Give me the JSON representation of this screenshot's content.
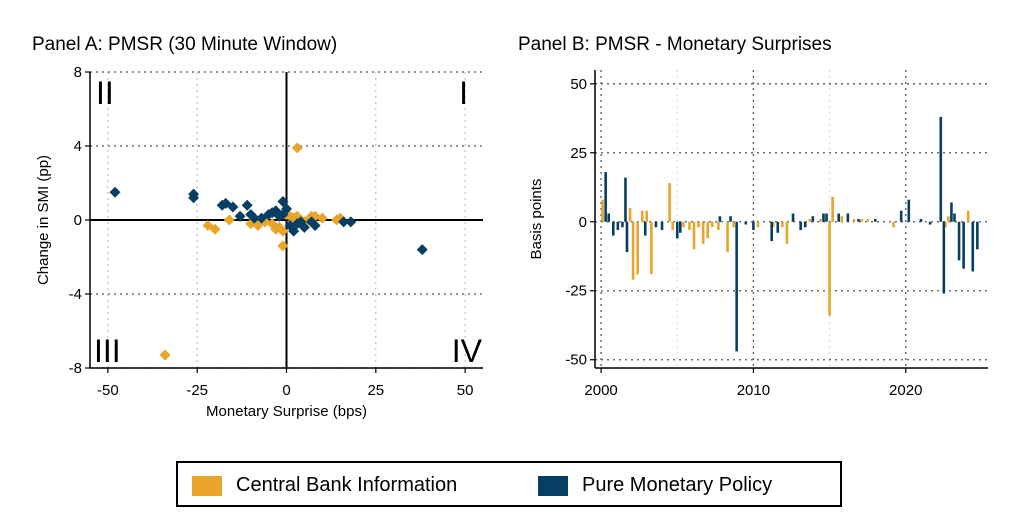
{
  "colors": {
    "cbi": "#E8A52A",
    "pmp": "#073F64",
    "grid": "#b4b4b4"
  },
  "legend": {
    "cbi": "Central Bank Information",
    "pmp": "Pure Monetary Policy"
  },
  "chart_data": [
    {
      "type": "scatter",
      "title": "Panel A: PMSR (30 Minute Window)",
      "xlabel": "Monetary Surprise (bps)",
      "ylabel": "Change in SMI (pp)",
      "xlim": [
        -55,
        55
      ],
      "ylim": [
        -8,
        8
      ],
      "xticks": [
        -50,
        -25,
        0,
        25,
        50
      ],
      "yticks": [
        -8,
        -4,
        0,
        4,
        8
      ],
      "xtick_labels": [
        "-50",
        "-25",
        "0",
        "25",
        "50"
      ],
      "ytick_labels": [
        "-8",
        "-4",
        "0",
        "4",
        "8"
      ],
      "quadrants": {
        "q1": "I",
        "q2": "II",
        "q3": "III",
        "q4": "IV"
      },
      "grid": true,
      "series": [
        {
          "name": "Central Bank Information",
          "points": [
            [
              3,
              3.9
            ],
            [
              -34,
              -7.3
            ],
            [
              -22,
              -0.3
            ],
            [
              -20,
              -0.5
            ],
            [
              -16,
              0.0
            ],
            [
              -10,
              -0.2
            ],
            [
              -8,
              -0.3
            ],
            [
              -6,
              -0.1
            ],
            [
              -4,
              -0.2
            ],
            [
              -3,
              -0.5
            ],
            [
              -2,
              -0.4
            ],
            [
              -1,
              -0.6
            ],
            [
              -1,
              -1.4
            ],
            [
              0,
              0.3
            ],
            [
              1,
              0.2
            ],
            [
              2,
              0.1
            ],
            [
              3,
              0.2
            ],
            [
              4,
              0.0
            ],
            [
              5,
              -0.1
            ],
            [
              7,
              0.2
            ],
            [
              8,
              0.2
            ],
            [
              10,
              0.1
            ],
            [
              14,
              0.0
            ],
            [
              15,
              0.1
            ],
            [
              6,
              0.0
            ]
          ]
        },
        {
          "name": "Pure Monetary Policy",
          "points": [
            [
              -48,
              1.5
            ],
            [
              -26,
              1.4
            ],
            [
              -26,
              1.2
            ],
            [
              -17,
              0.9
            ],
            [
              -18,
              0.8
            ],
            [
              -15,
              0.7
            ],
            [
              -11,
              0.8
            ],
            [
              -13,
              0.2
            ],
            [
              -10,
              0.3
            ],
            [
              -9,
              0.1
            ],
            [
              -7,
              0.1
            ],
            [
              -5,
              0.3
            ],
            [
              -4,
              0.4
            ],
            [
              -3,
              0.5
            ],
            [
              -2,
              0.2
            ],
            [
              -1,
              1.0
            ],
            [
              -1,
              0.3
            ],
            [
              0,
              0.6
            ],
            [
              1,
              -0.3
            ],
            [
              2,
              -0.6
            ],
            [
              3,
              -0.2
            ],
            [
              5,
              -0.4
            ],
            [
              7,
              -0.1
            ],
            [
              8,
              -0.3
            ],
            [
              16,
              -0.1
            ],
            [
              18,
              -0.1
            ],
            [
              38,
              -1.6
            ],
            [
              4,
              -0.1
            ]
          ]
        }
      ]
    },
    {
      "type": "bar",
      "title": "Panel B: PMSR - Monetary Surprises",
      "xlabel": "",
      "ylabel": "Basis points",
      "xlim": [
        1999.6,
        2025.4
      ],
      "ylim": [
        -53,
        55
      ],
      "xticks": [
        2000,
        2010,
        2020
      ],
      "yticks": [
        -50,
        -25,
        0,
        25,
        50
      ],
      "xtick_labels": [
        "2000",
        "2010",
        "2020"
      ],
      "ytick_labels": [
        "-50",
        "-25",
        "0",
        "25",
        "50"
      ],
      "grid": true,
      "series": [
        {
          "name": "Central Bank Information",
          "bars": [
            [
              2000.1,
              8
            ],
            [
              2001.9,
              5
            ],
            [
              2002.1,
              -21
            ],
            [
              2002.4,
              -19
            ],
            [
              2002.7,
              4
            ],
            [
              2003.0,
              4
            ],
            [
              2003.3,
              -19
            ],
            [
              2004.5,
              14
            ],
            [
              2004.7,
              -3
            ],
            [
              2005.4,
              -2
            ],
            [
              2005.8,
              -3
            ],
            [
              2006.1,
              -10
            ],
            [
              2006.4,
              -2
            ],
            [
              2006.7,
              -8
            ],
            [
              2007.0,
              -6
            ],
            [
              2007.3,
              -2
            ],
            [
              2007.7,
              -3
            ],
            [
              2008.3,
              -11
            ],
            [
              2008.7,
              -2
            ],
            [
              2010.3,
              -2
            ],
            [
              2011.3,
              -2
            ],
            [
              2011.9,
              -2
            ],
            [
              2012.2,
              -8
            ],
            [
              2013.7,
              1
            ],
            [
              2014.4,
              1
            ],
            [
              2015.0,
              -34
            ],
            [
              2015.2,
              9
            ],
            [
              2015.8,
              2
            ],
            [
              2016.6,
              1
            ],
            [
              2017.1,
              1
            ],
            [
              2017.5,
              1
            ],
            [
              2019.2,
              -2
            ],
            [
              2022.6,
              -2
            ],
            [
              2022.8,
              2
            ],
            [
              2024.1,
              4
            ]
          ]
        },
        {
          "name": "Pure Monetary Policy",
          "bars": [
            [
              2000.3,
              18
            ],
            [
              2000.5,
              3
            ],
            [
              2000.8,
              -5
            ],
            [
              2001.1,
              -3
            ],
            [
              2001.4,
              -2
            ],
            [
              2001.6,
              16
            ],
            [
              2001.7,
              -11
            ],
            [
              2002.9,
              -5
            ],
            [
              2003.6,
              -2
            ],
            [
              2004.0,
              -3
            ],
            [
              2005.0,
              -6
            ],
            [
              2005.2,
              -4
            ],
            [
              2007.8,
              2
            ],
            [
              2008.5,
              2
            ],
            [
              2008.9,
              -47
            ],
            [
              2009.5,
              -1
            ],
            [
              2010.0,
              -3
            ],
            [
              2011.2,
              -7
            ],
            [
              2011.6,
              -4
            ],
            [
              2012.6,
              3
            ],
            [
              2013.1,
              -3
            ],
            [
              2013.4,
              -2
            ],
            [
              2013.9,
              2
            ],
            [
              2014.6,
              3
            ],
            [
              2014.8,
              3
            ],
            [
              2015.6,
              3
            ],
            [
              2016.2,
              3
            ],
            [
              2016.9,
              1
            ],
            [
              2018.0,
              1
            ],
            [
              2019.7,
              4
            ],
            [
              2020.2,
              8
            ],
            [
              2021.6,
              -1
            ],
            [
              2022.3,
              38
            ],
            [
              2022.5,
              -26
            ],
            [
              2023.0,
              7
            ],
            [
              2023.5,
              -14
            ],
            [
              2023.8,
              -17
            ],
            [
              2024.4,
              -18
            ],
            [
              2024.7,
              -10
            ],
            [
              2023.2,
              3
            ],
            [
              2021.0,
              1
            ]
          ]
        }
      ]
    }
  ]
}
